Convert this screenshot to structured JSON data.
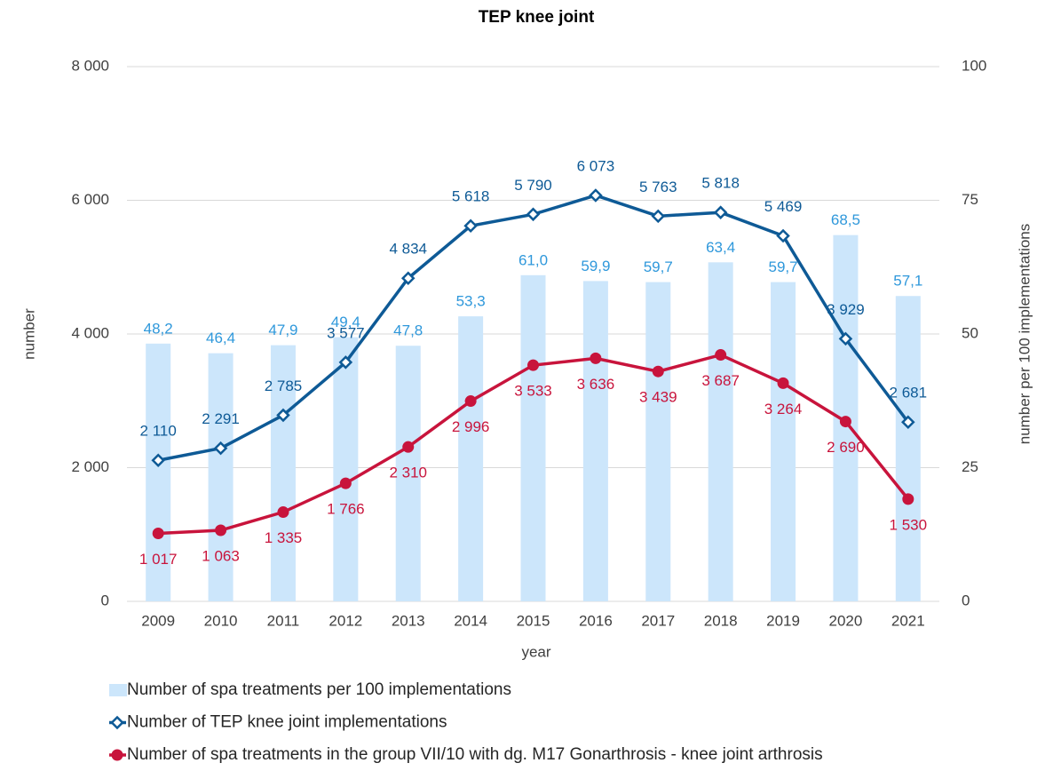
{
  "chart_data": {
    "type": "combo",
    "title": "TEP knee joint",
    "x_label": "year",
    "y_label": "number",
    "y2_label": "number per 100 implementations",
    "categories": [
      "2009",
      "2010",
      "2011",
      "2012",
      "2013",
      "2014",
      "2015",
      "2016",
      "2017",
      "2018",
      "2019",
      "2020",
      "2021"
    ],
    "ylim": [
      0,
      8000
    ],
    "yticks": [
      0,
      {
        "value": 2000,
        "label": "2 000"
      },
      {
        "value": 4000,
        "label": "4 000"
      },
      {
        "value": 6000,
        "label": "6 000"
      },
      {
        "value": 8000,
        "label": "8 000"
      }
    ],
    "y2lim": [
      0,
      100
    ],
    "y2ticks": [
      0,
      25,
      50,
      75,
      100
    ],
    "grid": true,
    "legend": "bottom",
    "series": [
      {
        "name": "Number of spa treatments per 100 implementations",
        "type": "bar",
        "axis": "y2",
        "color": "#cce6fb",
        "label_color": "#2f98db",
        "values": [
          48.2,
          46.4,
          47.9,
          49.4,
          47.8,
          53.3,
          61.0,
          59.9,
          59.7,
          63.4,
          59.7,
          68.5,
          57.1
        ],
        "value_labels": [
          "48,2",
          "46,4",
          "47,9",
          "49,4",
          "47,8",
          "53,3",
          "61,0",
          "59,9",
          "59,7",
          "63,4",
          "59,7",
          "68,5",
          "57,1"
        ]
      },
      {
        "name": "Number of TEP knee joint implementations",
        "type": "line",
        "marker": "diamond",
        "color": "#0e5a96",
        "values": [
          2110,
          2291,
          2785,
          3577,
          4834,
          5618,
          5790,
          6073,
          5763,
          5818,
          5469,
          3929,
          2681
        ],
        "value_labels": [
          "2 110",
          "2 291",
          "2 785",
          "3 577",
          "4 834",
          "5 618",
          "5 790",
          "6 073",
          "5 763",
          "5 818",
          "5 469",
          "3 929",
          "2 681"
        ]
      },
      {
        "name": "Number of spa treatments in the group VII/10 with dg. M17 Gonarthrosis - knee joint arthrosis",
        "type": "line",
        "marker": "circle",
        "color": "#c8143c",
        "values": [
          1017,
          1063,
          1335,
          1766,
          2310,
          2996,
          3533,
          3636,
          3439,
          3687,
          3264,
          2690,
          1530
        ],
        "value_labels": [
          "1 017",
          "1 063",
          "1 335",
          "1 766",
          "2 310",
          "2 996",
          "3 533",
          "3 636",
          "3 439",
          "3 687",
          "3 264",
          "2 690",
          "1 530"
        ]
      }
    ]
  }
}
